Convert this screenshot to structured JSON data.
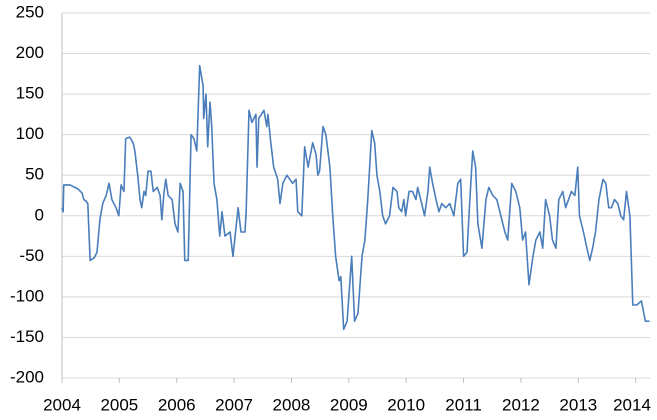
{
  "chart_data": {
    "type": "line",
    "color": "#4a7ebb",
    "grid": true,
    "xlim": [
      2004,
      2014.25
    ],
    "xticks": [
      2004,
      2005,
      2006,
      2007,
      2008,
      2009,
      2010,
      2011,
      2012,
      2013,
      2014
    ],
    "ylim": [
      -200,
      250
    ],
    "yticks": [
      -200,
      -150,
      -100,
      -50,
      0,
      50,
      100,
      150,
      200,
      250
    ],
    "x": [
      2004.0,
      2004.02,
      2004.03,
      2004.14,
      2004.28,
      2004.35,
      2004.38,
      2004.42,
      2004.45,
      2004.49,
      2004.56,
      2004.61,
      2004.66,
      2004.71,
      2004.77,
      2004.82,
      2004.87,
      2004.94,
      2004.99,
      2005.03,
      2005.08,
      2005.11,
      2005.18,
      2005.24,
      2005.27,
      2005.32,
      2005.36,
      2005.39,
      2005.43,
      2005.46,
      2005.5,
      2005.55,
      2005.59,
      2005.66,
      2005.71,
      2005.74,
      2005.78,
      2005.81,
      2005.85,
      2005.92,
      2005.97,
      2006.02,
      2006.06,
      2006.11,
      2006.14,
      2006.2,
      2006.25,
      2006.3,
      2006.35,
      2006.4,
      2006.46,
      2006.47,
      2006.51,
      2006.54,
      2006.58,
      2006.61,
      2006.65,
      2006.7,
      2006.75,
      2006.79,
      2006.84,
      2006.93,
      2006.98,
      2007.01,
      2007.07,
      2007.12,
      2007.19,
      2007.21,
      2007.26,
      2007.31,
      2007.38,
      2007.4,
      2007.43,
      2007.52,
      2007.57,
      2007.59,
      2007.64,
      2007.69,
      2007.76,
      2007.8,
      2007.85,
      2007.92,
      2008.02,
      2008.08,
      2008.11,
      2008.18,
      2008.23,
      2008.29,
      2008.37,
      2008.43,
      2008.46,
      2008.49,
      2008.55,
      2008.6,
      2008.67,
      2008.72,
      2008.77,
      2008.83,
      2008.86,
      2008.91,
      2008.97,
      2009.02,
      2009.05,
      2009.1,
      2009.16,
      2009.23,
      2009.28,
      2009.33,
      2009.4,
      2009.45,
      2009.49,
      2009.54,
      2009.59,
      2009.64,
      2009.71,
      2009.77,
      2009.84,
      2009.87,
      2009.92,
      2009.96,
      2009.99,
      2010.05,
      2010.11,
      2010.17,
      2010.2,
      2010.27,
      2010.32,
      2010.38,
      2010.41,
      2010.46,
      2010.52,
      2010.57,
      2010.62,
      2010.69,
      2010.76,
      2010.83,
      2010.9,
      2010.95,
      2011.0,
      2011.06,
      2011.11,
      2011.16,
      2011.21,
      2011.25,
      2011.32,
      2011.39,
      2011.44,
      2011.51,
      2011.58,
      2011.65,
      2011.72,
      2011.77,
      2011.84,
      2011.91,
      2011.98,
      2012.03,
      2012.08,
      2012.14,
      2012.21,
      2012.26,
      2012.33,
      2012.38,
      2012.43,
      2012.5,
      2012.55,
      2012.61,
      2012.66,
      2012.73,
      2012.78,
      2012.83,
      2012.88,
      2012.94,
      2012.99,
      2013.02,
      2013.09,
      2013.15,
      2013.2,
      2013.25,
      2013.3,
      2013.36,
      2013.43,
      2013.48,
      2013.53,
      2013.58,
      2013.63,
      2013.69,
      2013.74,
      2013.79,
      2013.84,
      2013.9,
      2013.95,
      2014.02,
      2014.1,
      2014.17,
      2014.24
    ],
    "values": [
      10,
      5,
      38,
      38,
      33,
      28,
      20,
      18,
      15,
      -55,
      -52,
      -45,
      -5,
      15,
      25,
      40,
      20,
      10,
      0,
      38,
      30,
      95,
      97,
      90,
      80,
      50,
      20,
      10,
      30,
      25,
      55,
      55,
      30,
      35,
      25,
      -5,
      30,
      45,
      25,
      20,
      -10,
      -20,
      40,
      30,
      -55,
      -55,
      100,
      95,
      80,
      185,
      160,
      120,
      150,
      85,
      140,
      110,
      40,
      20,
      -25,
      5,
      -25,
      -20,
      -50,
      -30,
      10,
      -20,
      -20,
      5,
      130,
      115,
      125,
      60,
      120,
      130,
      110,
      125,
      90,
      60,
      45,
      15,
      40,
      50,
      40,
      45,
      5,
      0,
      85,
      60,
      90,
      75,
      50,
      55,
      110,
      100,
      60,
      0,
      -50,
      -80,
      -75,
      -140,
      -130,
      -80,
      -50,
      -130,
      -120,
      -50,
      -30,
      20,
      105,
      90,
      50,
      30,
      0,
      -10,
      0,
      35,
      30,
      10,
      5,
      20,
      0,
      30,
      30,
      20,
      35,
      15,
      0,
      30,
      60,
      40,
      20,
      5,
      15,
      10,
      15,
      0,
      40,
      45,
      -50,
      -45,
      20,
      80,
      60,
      -10,
      -40,
      20,
      35,
      25,
      20,
      0,
      -20,
      -30,
      40,
      30,
      10,
      -30,
      -20,
      -85,
      -50,
      -30,
      -20,
      -40,
      20,
      0,
      -30,
      -40,
      20,
      30,
      10,
      20,
      30,
      25,
      60,
      0,
      -20,
      -40,
      -55,
      -40,
      -20,
      20,
      45,
      40,
      10,
      10,
      20,
      15,
      0,
      -5,
      30,
      0,
      -110,
      -110,
      -105,
      -130,
      -130
    ]
  }
}
